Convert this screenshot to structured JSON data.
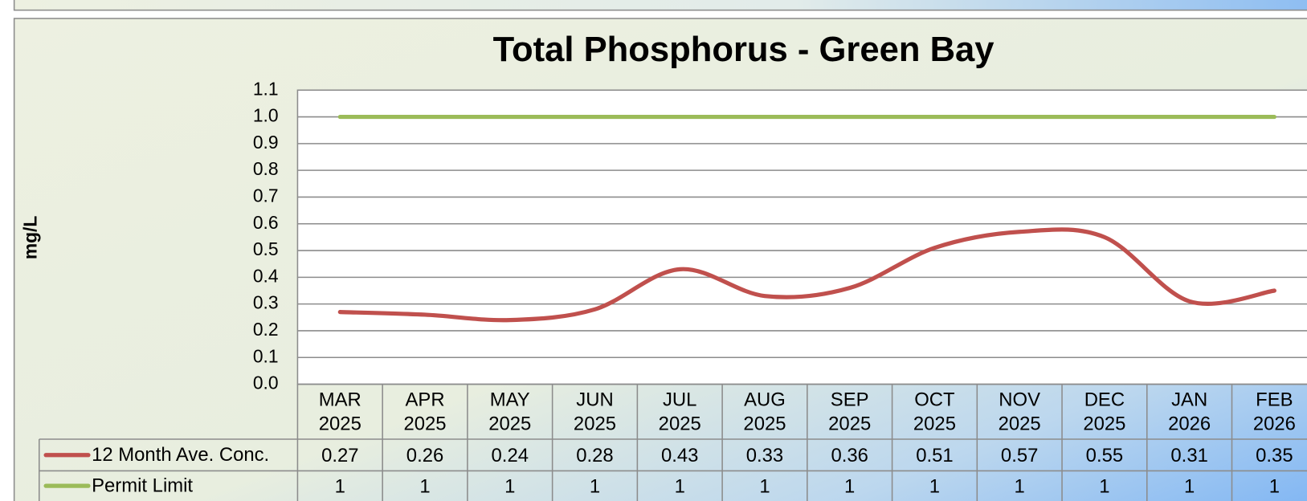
{
  "chart_data": {
    "type": "line",
    "title": "Total Phosphorus - Green Bay",
    "y_label": "mg/L",
    "categories": [
      "MAR\n2025",
      "APR\n2025",
      "MAY\n2025",
      "JUN\n2025",
      "JUL\n2025",
      "AUG\n2025",
      "SEP\n2025",
      "OCT\n2025",
      "NOV\n2025",
      "DEC\n2025",
      "JAN\n2026",
      "FEB\n2026"
    ],
    "series": [
      {
        "name": "12 Month Ave. Conc.",
        "color": "#c0504d",
        "values": [
          0.27,
          0.26,
          0.24,
          0.28,
          0.43,
          0.33,
          0.36,
          0.51,
          0.57,
          0.55,
          0.31,
          0.35
        ]
      },
      {
        "name": "Permit Limit",
        "color": "#9bbb59",
        "values": [
          1,
          1,
          1,
          1,
          1,
          1,
          1,
          1,
          1,
          1,
          1,
          1
        ]
      }
    ],
    "ylim": [
      0,
      1.1
    ],
    "yticks": [
      {
        "value": 0,
        "label": "0.0"
      },
      0.1,
      0.2,
      0.3,
      0.4,
      0.5,
      0.6,
      0.7,
      0.8,
      0.9,
      {
        "value": 1,
        "label": "1.0"
      },
      1.1
    ],
    "grid": true,
    "smooth": true
  }
}
